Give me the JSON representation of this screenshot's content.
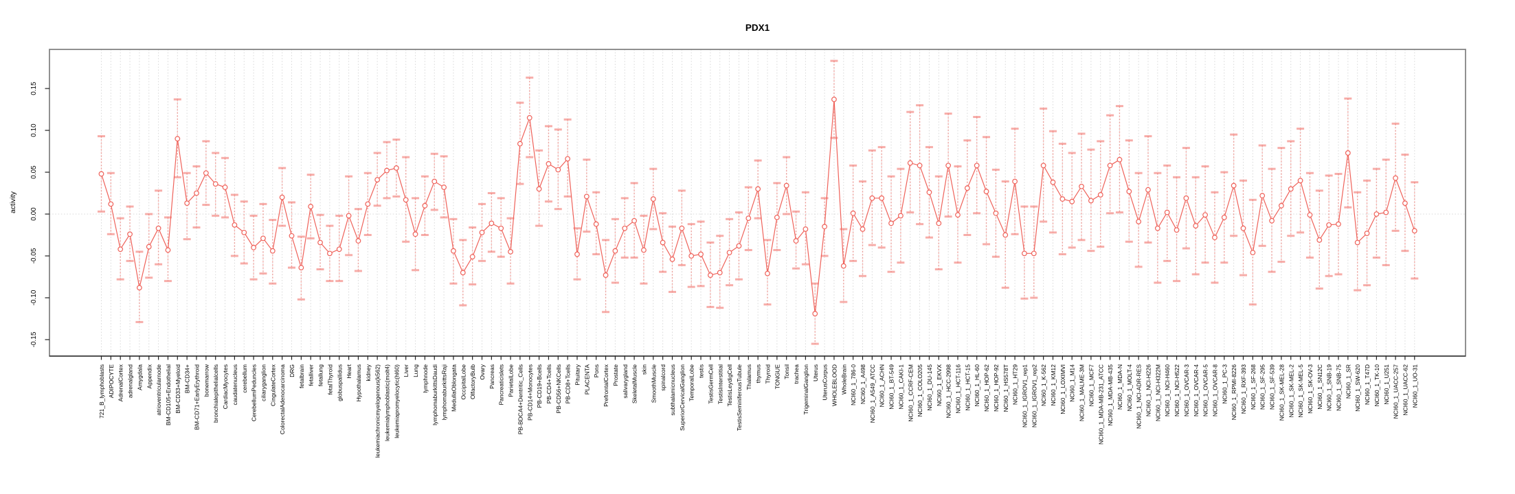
{
  "chart_data": {
    "type": "line",
    "title": "PDX1",
    "xlabel": "",
    "ylabel": "activity",
    "legend": "none",
    "grid": "vertical dotted gridline at every category; dotted horizontal line at y=0",
    "marker": "open-circle with dashed error bars and caps",
    "point_color": "#ef6159",
    "errorbar_color": "rgba(240,99,92,0.50)",
    "cap_color": "rgba(242,118,112,0.60)",
    "grid_color": "#d9d9d9",
    "box_color": "#848484",
    "tick_color": "#222222",
    "ylim": [
      -0.17,
      0.197
    ],
    "ytick_values": [
      0.15,
      0.1,
      0.05,
      0.0,
      -0.05,
      -0.1,
      -0.15
    ],
    "ytick_labels": [
      "0.15",
      "0.10",
      "0.05",
      "0.00",
      "-0.05",
      "-0.10",
      "-0.15"
    ],
    "categories": [
      "721_B_lymphoblasts",
      "ADIPOCYTE",
      "AdrenalCortex",
      "adrenalgland",
      "Amygdala",
      "Appendix",
      "atrioventricularnode",
      "BM-CD105+Endothelial",
      "BM-CD33+Myeloid",
      "BM-CD34+",
      "BM-CD71+EarlyErythroid",
      "bonemarrow",
      "bronchialepithelialcells",
      "CardiacMyocytes",
      "caudatenucleus",
      "cerebellum",
      "CerebellumPeduncles",
      "ciliaryganglion",
      "CingulateCortex",
      "ColorectalAdenocarcinoma",
      "DRG",
      "fetalbrain",
      "fetalliver",
      "fetallung",
      "fetalThyroid",
      "globuspallidus",
      "Heart",
      "Hypothalamus",
      "kidney",
      "leukemiachronicmyelogenous(k562)",
      "leukemialymphoblastic(molt4)",
      "leukemiapromyelocytic(hl60)",
      "Liver",
      "Lung",
      "lymphnode",
      "lymphomaburkittsDaudi",
      "lymphomaburkittsRaji",
      "MedullaOblongata",
      "OccipitalLobe",
      "OlfactoryBulb",
      "Ovary",
      "Pancreas",
      "Pancreaticislets",
      "ParietalLobe",
      "PB-BDCA4+Dentritic_Cells",
      "PB-CD14+Monocytes",
      "PB-CD19+Bcells",
      "PB-CD4+Tcells",
      "PB-CD56+NKCells",
      "PB-CD8+Tcells",
      "Pituitary",
      "PLACENTA",
      "Pons",
      "PrefrontalCortex",
      "Prostate",
      "salivarygland",
      "SkeletalMuscle",
      "skin",
      "SmoothMuscle",
      "spinalcord",
      "subthalamicnucleus",
      "SuperiorCervicalGanglion",
      "TemporalLobe",
      "testis",
      "TestisGermCell",
      "TestisInterstitial",
      "TestisLeydigCell",
      "TestisSeminiferousTubule",
      "Thalamus",
      "thymus",
      "Thyroid",
      "TONGUE",
      "Tonsil",
      "trachea",
      "TrigeminalGanglion",
      "Uterus",
      "UterusCorpus",
      "WHOLEBLOOD",
      "WholeBrain",
      "NCI60_1_786-0",
      "NCI60_1_A498",
      "NCI60_1_A549_ATCC",
      "NCI60_1_ACHN",
      "NCI60_1_BT-549",
      "NCI60_1_CAKI-1",
      "NCI60_1_CCRF-CEM",
      "NCI60_1_COLO205",
      "NCI60_1_DU-145",
      "NCI60_1_EKVX",
      "NCI60_1_HCC-2998",
      "NCI60_1_HCT-116",
      "NCI60_1_HCT-15",
      "NCI60_1_HL-60",
      "NCI60_1_HOP-62",
      "NCI60_1_HOP-92",
      "NCI60_1_HS578T",
      "NCI60_1_HT29",
      "NCI60_1_IGROV1_rep1",
      "NCI60_1_IGROV1_rep2",
      "NCI60_1_K-562",
      "NCI60_1_KM12",
      "NCI60_1_LOXIMVI",
      "NCI60_1_M14",
      "NCI60_1_MALME-3M",
      "NCI60_1_MCF7",
      "NCI60_1_MDA-MB-231_ATCC",
      "NCI60_1_MDA-MB-435",
      "NCI60_1_MDA-N",
      "NCI60_1_MOLT-4",
      "NCI60_1_NCI-ADR-RES",
      "NCI60_1_NCI-H226",
      "NCI60_1_NCI-H322M",
      "NCI60_1_NCI-H460",
      "NCI60_1_NCI-H522",
      "NCI60_1_OVCAR-3",
      "NCI60_1_OVCAR-4",
      "NCI60_1_OVCAR-5",
      "NCI60_1_OVCAR-8",
      "NCI60_1_PC-3",
      "NCI60_1_RPMI-8226",
      "NCI60_1_RXF-393",
      "NCI60_1_SF-268",
      "NCI60_1_SF-295",
      "NCI60_1_SF-539",
      "NCI60_1_SK-MEL-28",
      "NCI60_1_SK-MEL-2",
      "NCI60_1_SK-MEL-5",
      "NCI60_1_SK-OV-3",
      "NCI60_1_SN12C",
      "NCI60_1_SNB-19",
      "NCI60_1_SNB-75",
      "NCI60_1_SR",
      "NCI60_1_SW-620",
      "NCI60_1_T47D",
      "NCI60_1_TK-10",
      "NCI60_1_U251",
      "NCI60_1_UACC-257",
      "NCI60_1_UACC-62",
      "NCI60_1_UO-31"
    ],
    "values": [
      0.048,
      0.012,
      -0.042,
      -0.024,
      -0.088,
      -0.039,
      -0.017,
      -0.043,
      0.09,
      0.013,
      0.025,
      0.049,
      0.036,
      0.032,
      -0.013,
      -0.022,
      -0.04,
      -0.029,
      -0.044,
      0.02,
      -0.026,
      -0.064,
      0.009,
      -0.034,
      -0.047,
      -0.042,
      -0.002,
      -0.032,
      0.012,
      0.041,
      0.052,
      0.055,
      0.017,
      -0.024,
      0.01,
      0.039,
      0.032,
      -0.044,
      -0.07,
      -0.051,
      -0.022,
      -0.011,
      -0.017,
      -0.045,
      0.084,
      0.115,
      0.03,
      0.06,
      0.053,
      0.066,
      -0.048,
      0.021,
      -0.012,
      -0.073,
      -0.044,
      -0.017,
      -0.008,
      -0.043,
      0.018,
      -0.034,
      -0.054,
      -0.017,
      -0.05,
      -0.048,
      -0.073,
      -0.07,
      -0.046,
      -0.038,
      -0.005,
      0.03,
      -0.071,
      -0.004,
      0.034,
      -0.032,
      -0.018,
      -0.119,
      -0.015,
      0.137,
      -0.062,
      0.001,
      -0.018,
      0.019,
      0.019,
      -0.011,
      -0.002,
      0.061,
      0.058,
      0.026,
      -0.011,
      0.058,
      -0.001,
      0.031,
      0.058,
      0.027,
      0.001,
      -0.025,
      0.039,
      -0.047,
      -0.047,
      0.058,
      0.038,
      0.018,
      0.015,
      0.033,
      0.016,
      0.023,
      0.058,
      0.065,
      0.027,
      -0.009,
      0.029,
      -0.017,
      0.002,
      -0.019,
      0.019,
      -0.014,
      -0.001,
      -0.028,
      -0.004,
      0.034,
      -0.017,
      -0.046,
      0.022,
      -0.008,
      0.01,
      0.03,
      0.04,
      -0.001,
      -0.031,
      -0.013,
      -0.012,
      0.073,
      -0.034,
      -0.023,
      0.0,
      0.002,
      0.043,
      0.013,
      -0.02
    ],
    "err_lo": [
      0.003,
      -0.024,
      -0.078,
      -0.056,
      -0.129,
      -0.076,
      -0.06,
      -0.08,
      0.044,
      -0.03,
      -0.016,
      0.011,
      -0.002,
      -0.004,
      -0.05,
      -0.059,
      -0.078,
      -0.071,
      -0.083,
      -0.014,
      -0.064,
      -0.102,
      -0.029,
      -0.066,
      -0.08,
      -0.08,
      -0.049,
      -0.068,
      -0.025,
      0.01,
      0.019,
      0.021,
      -0.033,
      -0.067,
      -0.025,
      0.005,
      -0.004,
      -0.083,
      -0.109,
      -0.084,
      -0.056,
      -0.045,
      -0.051,
      -0.083,
      0.036,
      0.068,
      -0.014,
      0.015,
      0.006,
      0.021,
      -0.078,
      -0.021,
      -0.048,
      -0.117,
      -0.082,
      -0.052,
      -0.052,
      -0.083,
      -0.018,
      -0.069,
      -0.093,
      -0.061,
      -0.087,
      -0.086,
      -0.111,
      -0.112,
      -0.085,
      -0.078,
      -0.043,
      -0.005,
      -0.108,
      -0.043,
      0.0,
      -0.065,
      -0.06,
      -0.155,
      -0.05,
      0.091,
      -0.105,
      -0.056,
      -0.074,
      -0.037,
      -0.04,
      -0.069,
      -0.058,
      0.002,
      -0.012,
      -0.028,
      -0.066,
      -0.003,
      -0.058,
      -0.025,
      0.001,
      -0.036,
      -0.051,
      -0.088,
      -0.024,
      -0.101,
      -0.1,
      -0.009,
      -0.022,
      -0.048,
      -0.04,
      -0.031,
      -0.044,
      -0.039,
      0.001,
      0.002,
      -0.033,
      -0.063,
      -0.034,
      -0.082,
      -0.056,
      -0.08,
      -0.041,
      -0.072,
      -0.058,
      -0.082,
      -0.058,
      -0.026,
      -0.073,
      -0.108,
      -0.038,
      -0.069,
      -0.057,
      -0.026,
      -0.022,
      -0.052,
      -0.089,
      -0.074,
      -0.072,
      0.008,
      -0.091,
      -0.085,
      -0.052,
      -0.061,
      -0.02,
      -0.044,
      -0.077
    ],
    "err_hi": [
      0.093,
      0.049,
      -0.005,
      0.009,
      -0.045,
      0.0,
      0.028,
      -0.004,
      0.137,
      0.049,
      0.057,
      0.087,
      0.073,
      0.067,
      0.023,
      0.015,
      -0.002,
      0.012,
      -0.007,
      0.055,
      0.014,
      -0.027,
      0.047,
      -0.001,
      -0.014,
      -0.002,
      0.045,
      0.006,
      0.049,
      0.073,
      0.086,
      0.089,
      0.068,
      0.019,
      0.045,
      0.072,
      0.069,
      -0.006,
      -0.031,
      -0.016,
      0.012,
      0.025,
      0.019,
      -0.005,
      0.133,
      0.163,
      0.076,
      0.105,
      0.101,
      0.113,
      -0.017,
      0.065,
      0.026,
      -0.031,
      -0.006,
      0.019,
      0.037,
      -0.002,
      0.054,
      0.001,
      -0.015,
      0.028,
      -0.012,
      -0.009,
      -0.034,
      -0.026,
      -0.006,
      0.002,
      0.032,
      0.064,
      -0.031,
      0.037,
      0.068,
      0.003,
      0.026,
      -0.083,
      0.019,
      0.183,
      -0.018,
      0.058,
      0.039,
      0.076,
      0.08,
      0.045,
      0.054,
      0.122,
      0.13,
      0.08,
      0.045,
      0.12,
      0.057,
      0.088,
      0.116,
      0.092,
      0.053,
      0.039,
      0.102,
      0.009,
      0.009,
      0.126,
      0.099,
      0.084,
      0.073,
      0.096,
      0.077,
      0.087,
      0.118,
      0.129,
      0.088,
      0.049,
      0.093,
      0.049,
      0.058,
      0.044,
      0.079,
      0.044,
      0.057,
      0.026,
      0.05,
      0.095,
      0.04,
      0.017,
      0.082,
      0.054,
      0.079,
      0.087,
      0.102,
      0.049,
      0.028,
      0.046,
      0.048,
      0.138,
      0.026,
      0.04,
      0.054,
      0.065,
      0.108,
      0.071,
      0.038
    ]
  }
}
